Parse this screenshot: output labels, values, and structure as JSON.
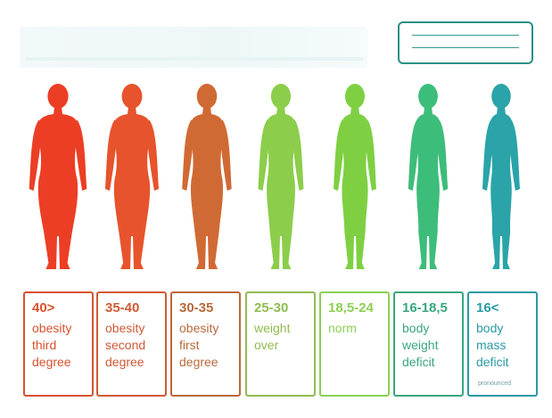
{
  "categories": [
    {
      "range": "40>",
      "description": "obesity\nthird\ndegree",
      "note": "",
      "color": "#d8522f",
      "figure_color": "#ec3e25",
      "type": "obese3"
    },
    {
      "range": "35-40",
      "description": "obesity\nsecond\ndegree",
      "note": "",
      "color": "#cf5a36",
      "figure_color": "#e7532c",
      "type": "obese2"
    },
    {
      "range": "30-35",
      "description": "obesity\nfirst\ndegree",
      "note": "",
      "color": "#b96a3c",
      "figure_color": "#d06a34",
      "type": "obese1"
    },
    {
      "range": "25-30",
      "description": "weight\nover",
      "note": "",
      "color": "#8fbc52",
      "figure_color": "#8ccd4b",
      "type": "over"
    },
    {
      "range": "18,5-24",
      "description": "norm",
      "note": "",
      "color": "#8dcf55",
      "figure_color": "#7ed042",
      "type": "norm"
    },
    {
      "range": "16-18,5",
      "description": "body\nweight\ndeficit",
      "note": "",
      "color": "#3aa67e",
      "figure_color": "#3dbd7a",
      "type": "deficit"
    },
    {
      "range": "16<",
      "description": "body\nmass\ndeficit",
      "note": "pronounced",
      "color": "#2a9aa3",
      "figure_color": "#2aa4a8",
      "type": "severe"
    }
  ]
}
